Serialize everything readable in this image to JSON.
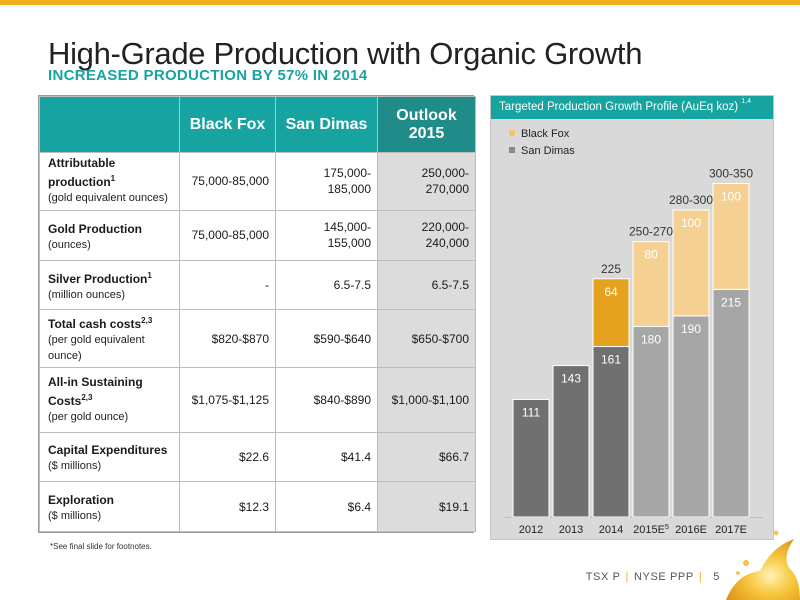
{
  "header": {
    "title": "High-Grade Production with Organic Growth",
    "subtitle": "INCREASED PRODUCTION BY 57% IN 2014"
  },
  "table": {
    "columns": [
      "Black Fox",
      "San Dimas",
      "Outlook 2015"
    ],
    "rows": [
      {
        "label": "Attributable production",
        "sup": "1",
        "sub": "(gold equivalent ounces)",
        "values": [
          "75,000-85,000",
          "175,000-185,000",
          "250,000-270,000"
        ]
      },
      {
        "label": "Gold Production",
        "sup": "",
        "sub": "(ounces)",
        "values": [
          "75,000-85,000",
          "145,000-155,000",
          "220,000-240,000"
        ]
      },
      {
        "label": "Silver Production",
        "sup": "1",
        "sub": "(million ounces)",
        "values": [
          "-",
          "6.5-7.5",
          "6.5-7.5"
        ]
      },
      {
        "label": "Total cash costs",
        "sup": "2,3",
        "sub": "(per gold equivalent ounce)",
        "values": [
          "$820-$870",
          "$590-$640",
          "$650-$700"
        ]
      },
      {
        "label": "All-in Sustaining Costs",
        "sup": "2,3",
        "sub": "(per gold ounce)",
        "values": [
          "$1,075-$1,125",
          "$840-$890",
          "$1,000-$1,100"
        ]
      },
      {
        "label": "Capital Expenditures",
        "sup": "",
        "sub": "($ millions)",
        "values": [
          "$22.6",
          "$41.4",
          "$66.7"
        ]
      },
      {
        "label": "Exploration",
        "sup": "",
        "sub": "($ millions)",
        "values": [
          "$12.3",
          "$6.4",
          "$19.1"
        ]
      }
    ],
    "footnote": "*See final slide for footnotes."
  },
  "chart_panel": {
    "title": "Targeted Production Growth Profile (AuEq koz)",
    "title_sup": "1,4"
  },
  "chart_data": {
    "type": "bar",
    "stacked": true,
    "title": "Targeted Production Growth Profile (AuEq koz)",
    "categories": [
      "2012",
      "2013",
      "2014",
      "2015E",
      "2016E",
      "2017E"
    ],
    "category_sup": [
      "",
      "",
      "",
      "5",
      "",
      ""
    ],
    "series": [
      {
        "name": "San Dimas",
        "values": [
          111,
          143,
          161,
          180,
          190,
          215
        ]
      },
      {
        "name": "Black Fox",
        "values": [
          null,
          null,
          64,
          80,
          100,
          100
        ]
      }
    ],
    "totals": [
      "",
      "",
      "225",
      "250-270",
      "280-300",
      "300-350"
    ],
    "legend_position": "top-left",
    "ylim": [
      0,
      340
    ]
  },
  "colors": {
    "accent_teal": "#17a3a0",
    "gold": "#f2b11c",
    "black_fox_actual": "#e5a21e",
    "black_fox_forecast": "#f4d193",
    "san_dimas_actual": "#707070",
    "san_dimas_forecast": "#a6a6a6"
  },
  "footer": {
    "ticker1": "TSX P",
    "ticker2": "NYSE PPP",
    "page": "5"
  }
}
